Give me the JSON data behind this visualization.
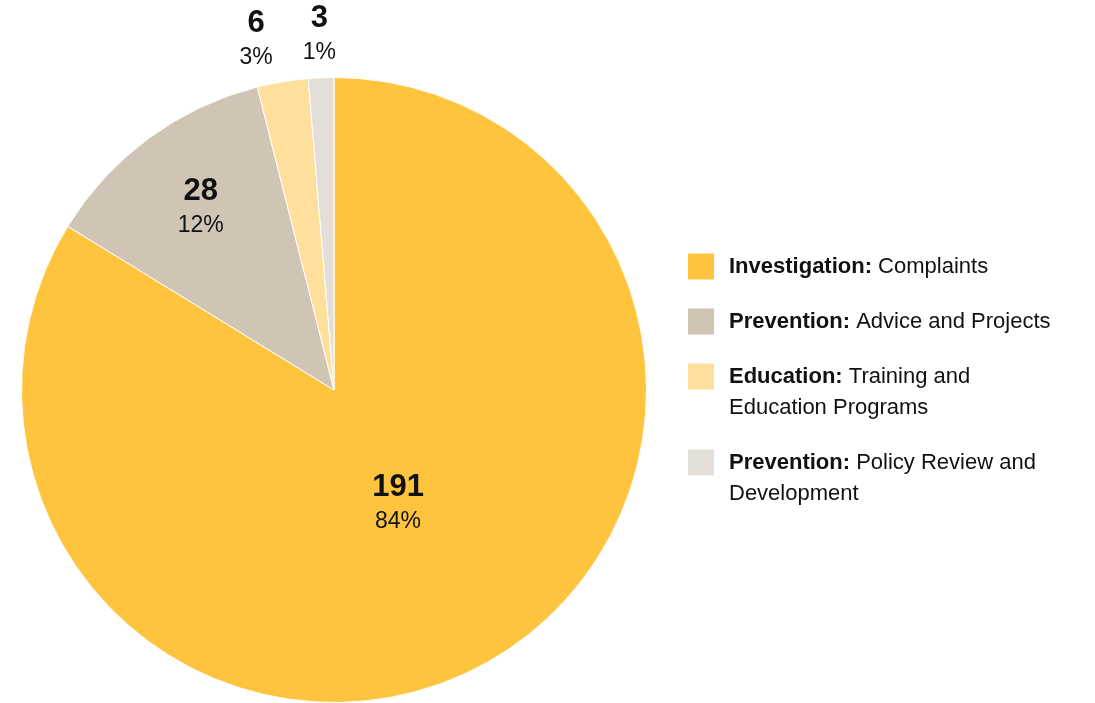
{
  "chart_data": {
    "type": "pie",
    "categories": [
      "Investigation: Complaints",
      "Prevention: Advice and Projects",
      "Education: Training and Education Programs",
      "Prevention: Policy Review and Development"
    ],
    "values": [
      191,
      28,
      6,
      3
    ],
    "colors": [
      "#ffc43d",
      "#d0c4b5",
      "#fedf9c",
      "#e4ded8"
    ],
    "value_labels": [
      "191\n84%",
      "28\n12%",
      "6\n3%",
      "3\n1%"
    ],
    "legend": "right"
  }
}
